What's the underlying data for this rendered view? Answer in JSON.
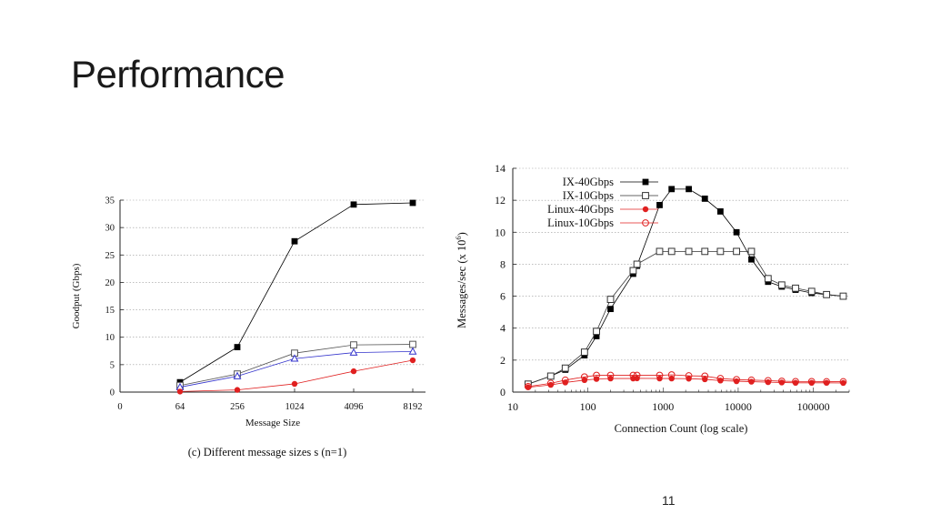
{
  "slide": {
    "title": "Performance",
    "page_number": "11"
  },
  "chart_data": [
    {
      "type": "line",
      "title": "",
      "caption": "(c) Different message sizes s (n=1)",
      "xlabel": "Message Size",
      "ylabel": "Goodput (Gbps)",
      "x_ticks": [
        "0",
        "64",
        "256",
        "1024",
        "4096",
        "8192"
      ],
      "ylim": [
        0,
        35
      ],
      "y_ticks": [
        0,
        5,
        10,
        15,
        20,
        25,
        30,
        35
      ],
      "grid": "horizontal dotted",
      "categories": [
        "64",
        "256",
        "1024",
        "4096",
        "8192"
      ],
      "series": [
        {
          "marker": "filled-square",
          "color": "#000000",
          "values": [
            1.8,
            8.2,
            27.5,
            34.2,
            34.5
          ]
        },
        {
          "marker": "open-square",
          "color": "#555555",
          "values": [
            1.2,
            3.3,
            7.1,
            8.6,
            8.7
          ]
        },
        {
          "marker": "open-triangle",
          "color": "#3333cc",
          "values": [
            0.9,
            2.9,
            6.1,
            7.2,
            7.4
          ]
        },
        {
          "marker": "filled-circle",
          "color": "#e02020",
          "values": [
            0.1,
            0.4,
            1.5,
            3.8,
            5.8
          ]
        }
      ]
    },
    {
      "type": "line",
      "title": "",
      "xlabel": "Connection Count (log scale)",
      "ylabel": "Messages/sec (x 10^6)",
      "x_scale": "log",
      "x_ticks": [
        "10",
        "100",
        "1000",
        "10000",
        "100000"
      ],
      "xlim": [
        10,
        300000
      ],
      "ylim": [
        0,
        14
      ],
      "y_ticks": [
        0,
        2,
        4,
        6,
        8,
        10,
        12,
        14
      ],
      "grid": "horizontal dotted",
      "legend": "top-left",
      "series": [
        {
          "name": "IX-40Gbps",
          "marker": "filled-square",
          "color": "#000000",
          "x": [
            16,
            32,
            50,
            90,
            130,
            200,
            400,
            450,
            900,
            1300,
            2200,
            3600,
            5800,
            9500,
            15000,
            25000,
            38000,
            58000,
            95000,
            150000,
            250000
          ],
          "y": [
            0.5,
            1.0,
            1.4,
            2.3,
            3.5,
            5.2,
            7.4,
            7.9,
            11.7,
            12.7,
            12.7,
            12.1,
            11.3,
            10.0,
            8.3,
            6.9,
            6.6,
            6.4,
            6.2,
            6.1,
            6.0
          ]
        },
        {
          "name": "IX-10Gbps",
          "marker": "open-square",
          "color": "#333333",
          "x": [
            16,
            32,
            50,
            90,
            130,
            200,
            400,
            450,
            900,
            1300,
            2200,
            3600,
            5800,
            9500,
            15000,
            25000,
            38000,
            58000,
            95000,
            150000,
            250000
          ],
          "y": [
            0.5,
            1.0,
            1.5,
            2.5,
            3.8,
            5.8,
            7.6,
            8.0,
            8.8,
            8.8,
            8.8,
            8.8,
            8.8,
            8.8,
            8.8,
            7.1,
            6.7,
            6.5,
            6.3,
            6.1,
            6.0
          ]
        },
        {
          "name": "Linux-40Gbps",
          "marker": "filled-circle",
          "color": "#e02020",
          "x": [
            16,
            32,
            50,
            90,
            130,
            200,
            400,
            450,
            900,
            1300,
            2200,
            3600,
            5800,
            9500,
            15000,
            25000,
            38000,
            58000,
            95000,
            150000,
            250000
          ],
          "y": [
            0.3,
            0.45,
            0.6,
            0.75,
            0.82,
            0.85,
            0.85,
            0.86,
            0.85,
            0.85,
            0.84,
            0.8,
            0.72,
            0.68,
            0.65,
            0.62,
            0.6,
            0.58,
            0.58,
            0.58,
            0.57
          ]
        },
        {
          "name": "Linux-10Gbps",
          "marker": "open-circle",
          "color": "#e02020",
          "x": [
            16,
            32,
            50,
            90,
            130,
            200,
            400,
            450,
            900,
            1300,
            2200,
            3600,
            5800,
            9500,
            15000,
            25000,
            38000,
            58000,
            95000,
            150000,
            250000
          ],
          "y": [
            0.35,
            0.55,
            0.75,
            0.95,
            1.05,
            1.05,
            1.05,
            1.05,
            1.05,
            1.08,
            1.02,
            1.0,
            0.85,
            0.78,
            0.75,
            0.72,
            0.68,
            0.66,
            0.66,
            0.65,
            0.65
          ]
        }
      ]
    }
  ]
}
